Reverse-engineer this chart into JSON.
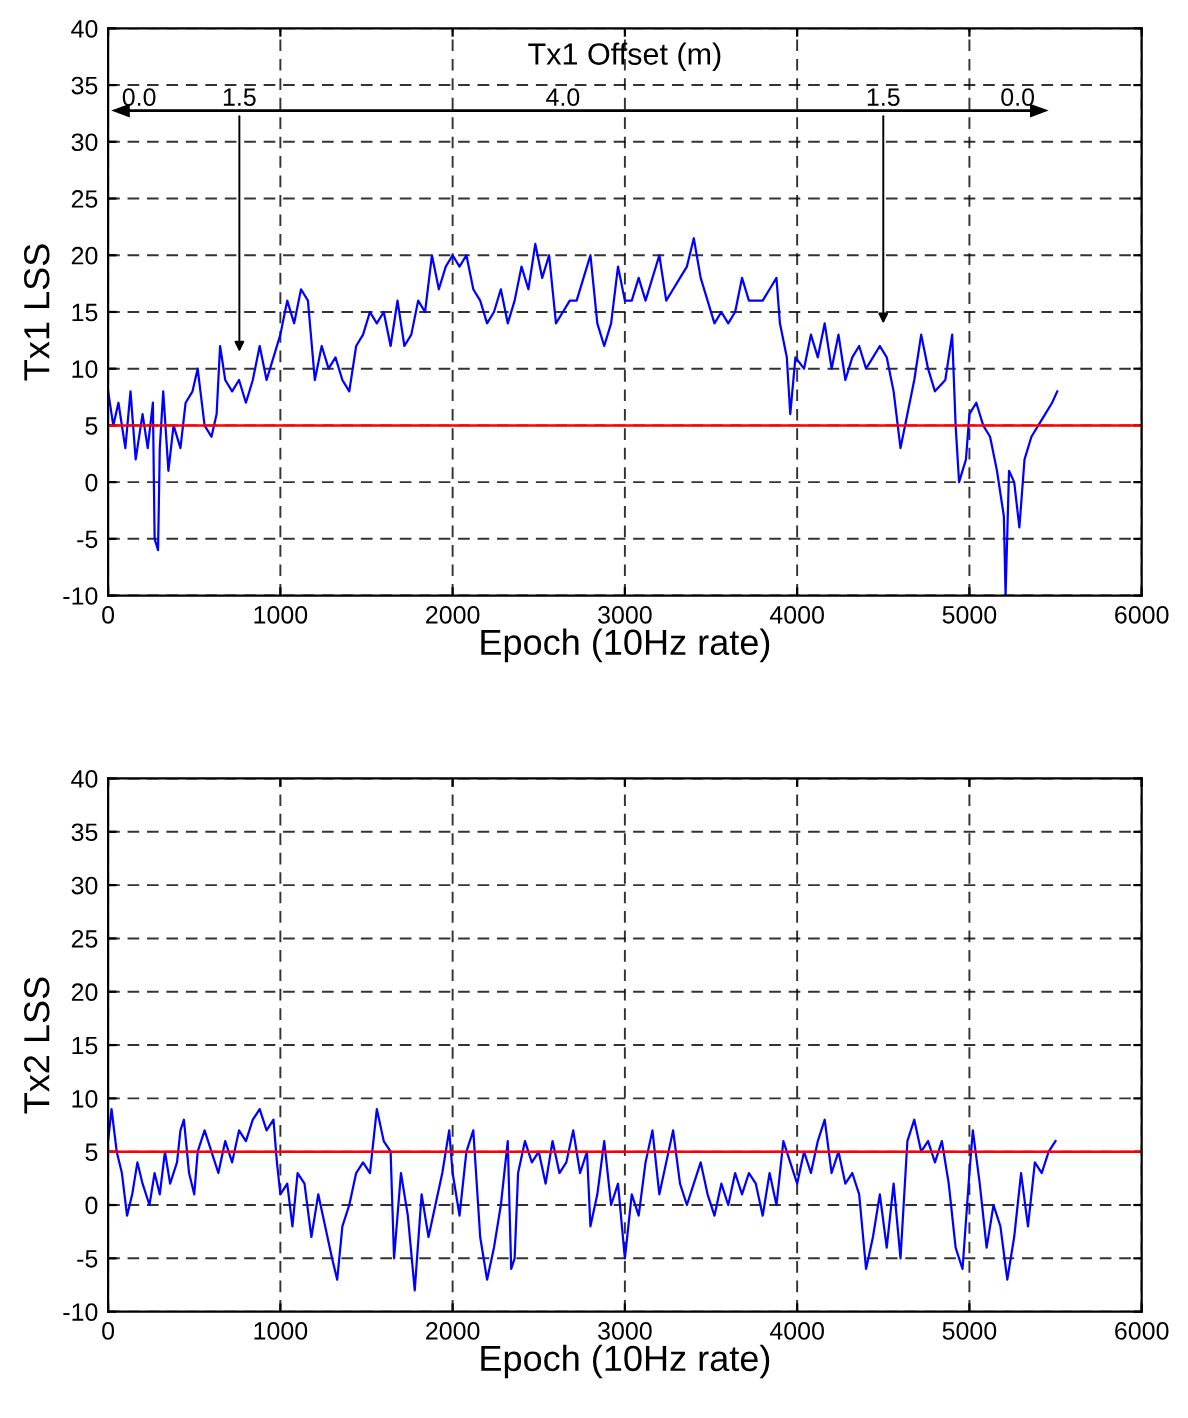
{
  "chart_data": [
    {
      "type": "line",
      "xlabel": "Epoch (10Hz rate)",
      "ylabel": "Tx1 LSS",
      "xlim": [
        0,
        6000
      ],
      "ylim": [
        -10,
        40
      ],
      "xticks": [
        0,
        1000,
        2000,
        3000,
        4000,
        5000,
        6000
      ],
      "yticks": [
        -10,
        -5,
        0,
        5,
        10,
        15,
        20,
        25,
        30,
        35,
        40
      ],
      "grid": true,
      "line_style": "solid",
      "ref_lines": [
        {
          "axis": "y",
          "value": 5,
          "color": "#ff0000"
        }
      ],
      "annotations": [
        "Tx1 Offset (m)",
        "0.0",
        "1.5",
        "4.0",
        "1.5",
        "0.0"
      ],
      "series": [
        {
          "color": "#0000ff",
          "x": [
            0,
            30,
            60,
            100,
            130,
            160,
            200,
            230,
            260,
            270,
            290,
            300,
            320,
            350,
            380,
            420,
            450,
            490,
            520,
            560,
            600,
            630,
            650,
            680,
            720,
            760,
            800,
            840,
            880,
            920,
            960,
            1000,
            1040,
            1080,
            1120,
            1160,
            1200,
            1240,
            1280,
            1320,
            1360,
            1400,
            1440,
            1480,
            1520,
            1560,
            1600,
            1640,
            1680,
            1720,
            1760,
            1800,
            1840,
            1880,
            1920,
            1960,
            2000,
            2040,
            2080,
            2120,
            2160,
            2200,
            2240,
            2280,
            2320,
            2360,
            2400,
            2440,
            2480,
            2520,
            2560,
            2600,
            2640,
            2680,
            2720,
            2760,
            2800,
            2840,
            2880,
            2920,
            2960,
            3000,
            3040,
            3080,
            3120,
            3160,
            3200,
            3240,
            3280,
            3320,
            3360,
            3400,
            3440,
            3480,
            3520,
            3560,
            3600,
            3640,
            3680,
            3720,
            3760,
            3800,
            3840,
            3880,
            3900,
            3940,
            3960,
            3990,
            4040,
            4080,
            4120,
            4160,
            4200,
            4240,
            4280,
            4320,
            4360,
            4400,
            4440,
            4480,
            4520,
            4560,
            4600,
            4640,
            4680,
            4720,
            4760,
            4800,
            4860,
            4900,
            4920,
            4940,
            4980,
            5000,
            5040,
            5080,
            5120,
            5160,
            5200,
            5210,
            5230,
            5260,
            5290,
            5320,
            5360,
            5400,
            5440,
            5480,
            5510
          ],
          "values": [
            8,
            5,
            7,
            3,
            8,
            2,
            6,
            3,
            7,
            -5,
            -6,
            3,
            8,
            1,
            5,
            3,
            7,
            8,
            10,
            5,
            4,
            6,
            12,
            9,
            8,
            9,
            7,
            9,
            12,
            9,
            11,
            13,
            16,
            14,
            17,
            16,
            9,
            12,
            10,
            11,
            9,
            8,
            12,
            13,
            15,
            14,
            15,
            12,
            16,
            12,
            13,
            16,
            15,
            20,
            17,
            19,
            20,
            19,
            20,
            17,
            16,
            14,
            15,
            17,
            14,
            16,
            19,
            17,
            21,
            18,
            20,
            14,
            15,
            16,
            16,
            18,
            20,
            14,
            12,
            14,
            19,
            16,
            16,
            18,
            16,
            18,
            20,
            16,
            17,
            18,
            19,
            21.5,
            18,
            16,
            14,
            15,
            14,
            15,
            18,
            16,
            16,
            16,
            17,
            18,
            14,
            11,
            6,
            11,
            10,
            13,
            11,
            14,
            10,
            13,
            9,
            11,
            12,
            10,
            11,
            12,
            11,
            8,
            3,
            6,
            9,
            13,
            10,
            8,
            9,
            13,
            5,
            0,
            2,
            6,
            7,
            5,
            4,
            1,
            -3,
            -10,
            1,
            0,
            -4,
            2,
            4,
            5,
            6,
            7,
            8
          ]
        }
      ]
    },
    {
      "type": "line",
      "xlabel": "Epoch (10Hz rate)",
      "ylabel": "Tx2 LSS",
      "xlim": [
        0,
        6000
      ],
      "ylim": [
        -10,
        40
      ],
      "xticks": [
        0,
        1000,
        2000,
        3000,
        4000,
        5000,
        6000
      ],
      "yticks": [
        -10,
        -5,
        0,
        5,
        10,
        15,
        20,
        25,
        30,
        35,
        40
      ],
      "grid": true,
      "line_style": "solid",
      "ref_lines": [
        {
          "axis": "y",
          "value": 5,
          "color": "#ff0000"
        }
      ],
      "series": [
        {
          "color": "#0000ff",
          "x": [
            0,
            20,
            50,
            80,
            110,
            140,
            170,
            200,
            240,
            270,
            300,
            330,
            360,
            400,
            420,
            440,
            470,
            500,
            520,
            560,
            600,
            640,
            680,
            720,
            760,
            800,
            840,
            880,
            920,
            960,
            980,
            1000,
            1040,
            1070,
            1100,
            1140,
            1180,
            1220,
            1260,
            1300,
            1330,
            1360,
            1400,
            1440,
            1480,
            1520,
            1560,
            1600,
            1640,
            1660,
            1700,
            1740,
            1780,
            1820,
            1860,
            1900,
            1940,
            1980,
            2000,
            2040,
            2080,
            2120,
            2160,
            2200,
            2240,
            2280,
            2320,
            2340,
            2360,
            2380,
            2420,
            2460,
            2500,
            2540,
            2580,
            2620,
            2660,
            2700,
            2740,
            2780,
            2800,
            2840,
            2880,
            2920,
            2960,
            3000,
            3040,
            3080,
            3120,
            3160,
            3200,
            3240,
            3280,
            3320,
            3360,
            3400,
            3440,
            3480,
            3520,
            3560,
            3600,
            3640,
            3680,
            3720,
            3760,
            3800,
            3840,
            3880,
            3920,
            3960,
            4000,
            4040,
            4080,
            4120,
            4160,
            4200,
            4240,
            4280,
            4320,
            4360,
            4400,
            4440,
            4480,
            4520,
            4560,
            4600,
            4640,
            4680,
            4720,
            4760,
            4800,
            4840,
            4880,
            4920,
            4960,
            5000,
            5020,
            5060,
            5100,
            5140,
            5180,
            5220,
            5260,
            5300,
            5340,
            5380,
            5420,
            5460,
            5500
          ],
          "values": [
            6,
            9,
            5,
            3,
            -1,
            1,
            4,
            2,
            0,
            3,
            1,
            5,
            2,
            4,
            7,
            8,
            3,
            1,
            5,
            7,
            5,
            3,
            6,
            4,
            7,
            6,
            8,
            9,
            7,
            8,
            4,
            1,
            2,
            -2,
            3,
            2,
            -3,
            1,
            -2,
            -5,
            -7,
            -2,
            0,
            3,
            4,
            3,
            9,
            6,
            5,
            -5,
            3,
            -1,
            -8,
            1,
            -3,
            0,
            3,
            7,
            3,
            -1,
            5,
            7,
            -3,
            -7,
            -4,
            0,
            6,
            -6,
            -5,
            3,
            6,
            4,
            5,
            2,
            6,
            3,
            4,
            7,
            3,
            5,
            -2,
            1,
            6,
            0,
            2,
            -5,
            1,
            -1,
            4,
            7,
            1,
            4,
            7,
            2,
            0,
            2,
            4,
            1,
            -1,
            2,
            0,
            3,
            1,
            3,
            2,
            -1,
            3,
            0,
            6,
            4,
            2,
            5,
            3,
            6,
            8,
            3,
            5,
            2,
            3,
            1,
            -6,
            -3,
            1,
            -4,
            2,
            -5,
            6,
            8,
            5,
            6,
            4,
            6,
            2,
            -4,
            -6,
            3,
            7,
            2,
            -4,
            0,
            -2,
            -7,
            -3,
            3,
            -2,
            4,
            3,
            5,
            6
          ]
        }
      ]
    }
  ]
}
